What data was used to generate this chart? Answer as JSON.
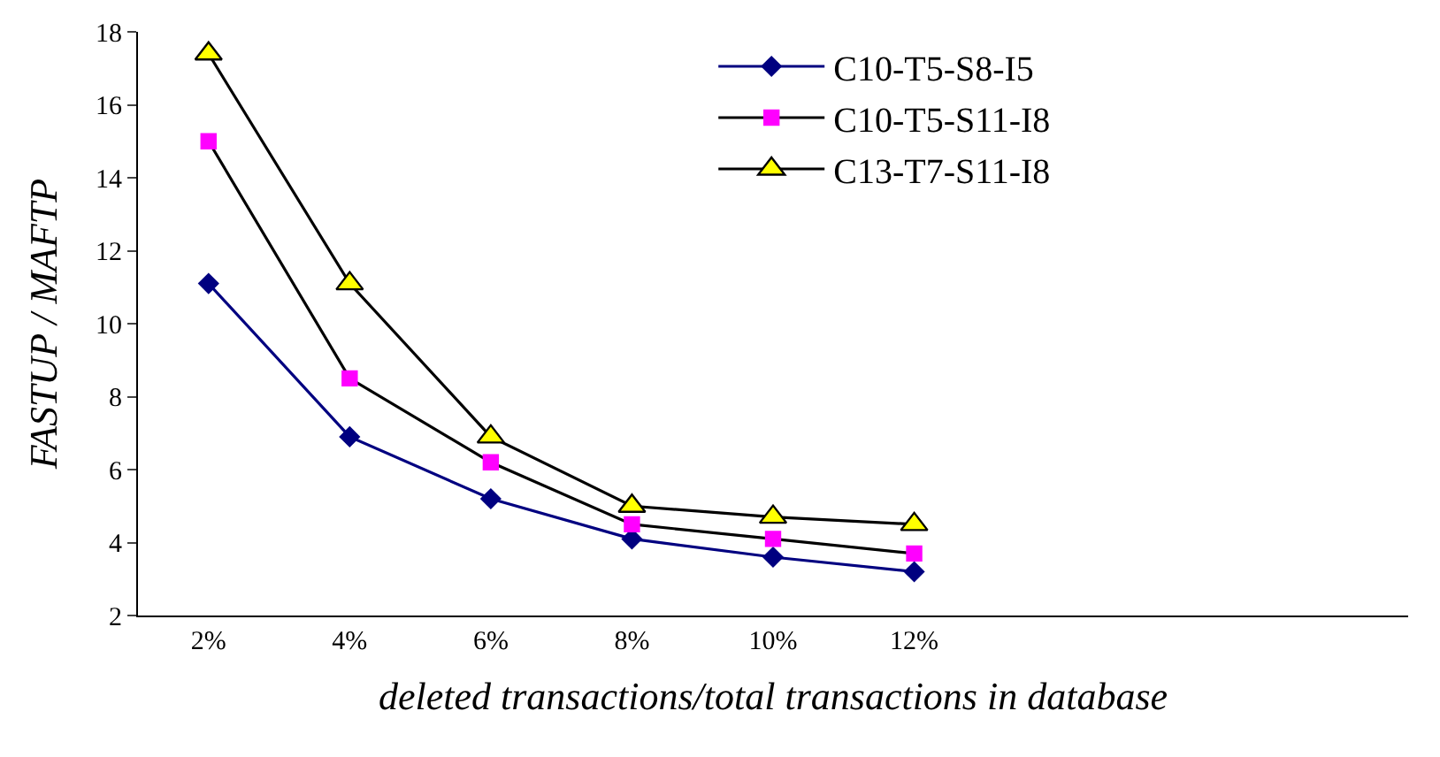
{
  "chart_data": {
    "type": "line",
    "xlabel": "deleted transactions/total transactions in database",
    "ylabel": "FASTUP / MAFTP",
    "categories": [
      "2%",
      "4%",
      "6%",
      "8%",
      "10%",
      "12%",
      null,
      null,
      null
    ],
    "series": [
      {
        "name": "C10-T5-S8-I5",
        "color": "#000080",
        "marker": "diamond",
        "values": [
          11.1,
          6.9,
          5.2,
          4.1,
          3.6,
          3.2,
          null,
          null,
          null
        ]
      },
      {
        "name": "C10-T5-S11-I8",
        "color": "#000000",
        "colors": [
          "#ff00ff",
          "#ff00ff",
          "#ff00ff",
          "#ff00ff",
          "#ff00ff",
          "#ff00ff",
          "#ff00ff",
          "#ff00ff",
          "#ff00ff"
        ],
        "marker": "square",
        "values": [
          15.0,
          8.5,
          6.2,
          4.5,
          4.1,
          3.7,
          null,
          null,
          null
        ]
      },
      {
        "name": "C13-T7-S11-I8",
        "color": "#000000",
        "colors": [
          "#ffff00",
          "#ffff00",
          "#ffff00",
          "#ffff00",
          "#ffff00",
          "#ffff00",
          "#ffff00",
          "#ffff00",
          "#ffff00"
        ],
        "marker": "triangle",
        "values": [
          17.4,
          11.1,
          6.9,
          5.0,
          4.7,
          4.5,
          null,
          null,
          null
        ]
      }
    ],
    "ylim": [
      2,
      18
    ],
    "yticks": [
      2,
      4,
      6,
      8,
      10,
      12,
      14,
      16,
      18
    ],
    "legend": "top right",
    "line_style": "solid"
  }
}
